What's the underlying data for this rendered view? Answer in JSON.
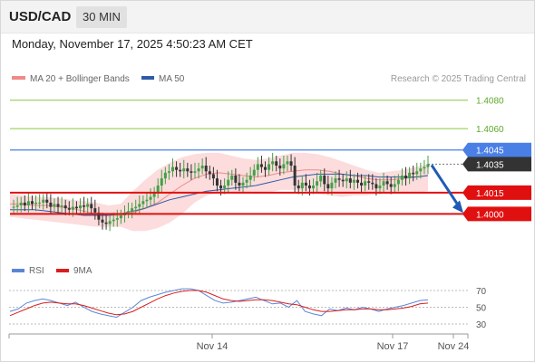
{
  "header": {
    "pair": "USD/CAD",
    "timeframe": "30 MIN",
    "timestamp": "Monday, November 17, 2025 4:50:23 AM CET"
  },
  "legend": {
    "bollinger_label": "MA 20 + Bollinger Bands",
    "ma50_label": "MA 50",
    "copyright": "Research © 2025 Trading Central",
    "bollinger_color": "#f08a8a",
    "ma50_color": "#2e5aa8"
  },
  "rsi_legend": {
    "rsi_label": "RSI",
    "ma_label": "9MA",
    "rsi_color": "#5b86d8",
    "ma_color": "#d81e1e"
  },
  "chart_data": {
    "type": "candlestick",
    "y_range": [
      1.3985,
      1.409
    ],
    "levels": [
      {
        "label": "1.4080",
        "value": 1.408,
        "kind": "target",
        "color": "#8cc63f"
      },
      {
        "label": "1.4060",
        "value": 1.406,
        "kind": "target",
        "color": "#8cc63f"
      },
      {
        "label": "1.4045",
        "value": 1.4045,
        "kind": "resistance",
        "color": "#4a7fe6"
      },
      {
        "label": "1.4035",
        "value": 1.4035,
        "kind": "last-price",
        "color": "#333333"
      },
      {
        "label": "1.4015",
        "value": 1.4015,
        "kind": "support",
        "color": "#e01010"
      },
      {
        "label": "1.4000",
        "value": 1.4,
        "kind": "support",
        "color": "#e01010"
      }
    ],
    "x_tick_labels": [
      "Nov 14",
      "Nov 17",
      "Nov 24"
    ],
    "close_path": [
      1.4005,
      1.4005,
      1.4006,
      1.4008,
      1.4006,
      1.4009,
      1.4007,
      1.4008,
      1.4008,
      1.401,
      1.4008,
      1.4005,
      1.4007,
      1.4005,
      1.4006,
      1.4004,
      1.4003,
      1.4005,
      1.4004,
      1.4006,
      1.4005,
      1.4007,
      1.4004,
      1.4001,
      1.3996,
      1.3994,
      1.3993,
      1.3995,
      1.3996,
      1.3997,
      1.3999,
      1.4001,
      1.4002,
      1.4004,
      1.4005,
      1.4007,
      1.4009,
      1.401,
      1.4012,
      1.4015,
      1.402,
      1.4025,
      1.4029,
      1.403,
      1.4033,
      1.4031,
      1.403,
      1.4032,
      1.403,
      1.4029,
      1.403,
      1.4032,
      1.4034,
      1.403,
      1.4028,
      1.4025,
      1.402,
      1.4018,
      1.402,
      1.4024,
      1.4027,
      1.4022,
      1.402,
      1.4022,
      1.4024,
      1.4027,
      1.4031,
      1.4035,
      1.4033,
      1.4031,
      1.4035,
      1.4037,
      1.4034,
      1.4032,
      1.4035,
      1.4037,
      1.4034,
      1.402,
      1.4018,
      1.4022,
      1.402,
      1.4018,
      1.402,
      1.4023,
      1.4027,
      1.4021,
      1.4018,
      1.4022,
      1.4025,
      1.4024,
      1.4023,
      1.4025,
      1.4022,
      1.4024,
      1.4022,
      1.402,
      1.4023,
      1.4022,
      1.4021,
      1.4018,
      1.402,
      1.4023,
      1.4021,
      1.4019,
      1.4021,
      1.4024,
      1.4027,
      1.4025,
      1.4029,
      1.4028,
      1.403,
      1.4032,
      1.4033,
      1.4035
    ],
    "ma20_path": [
      1.4007,
      1.4007,
      1.4006,
      1.4006,
      1.4005,
      1.4004,
      1.4002,
      1.4,
      1.3999,
      1.3999,
      1.4001,
      1.4004,
      1.4008,
      1.4014,
      1.402,
      1.4025,
      1.4028,
      1.4029,
      1.4028,
      1.4027,
      1.4026,
      1.4027,
      1.4029,
      1.403,
      1.4031,
      1.4031,
      1.403,
      1.4028,
      1.4027,
      1.4025,
      1.4024,
      1.4024,
      1.4025,
      1.4026,
      1.4027
    ],
    "ma50_path": [
      1.4003,
      1.4003,
      1.4003,
      1.4002,
      1.4001,
      1.4,
      1.3999,
      1.3999,
      1.3999,
      1.4,
      1.4002,
      1.4004,
      1.4007,
      1.401,
      1.4012,
      1.4014,
      1.4016,
      1.4017,
      1.4018,
      1.4019,
      1.402,
      1.4022,
      1.4024,
      1.4026,
      1.4027,
      1.4028,
      1.4028,
      1.4028,
      1.4027,
      1.4027,
      1.4026,
      1.4026,
      1.4026,
      1.4026,
      1.4027
    ],
    "bb_upper": [
      1.4014,
      1.4013,
      1.4012,
      1.4012,
      1.4011,
      1.401,
      1.4009,
      1.4008,
      1.4006,
      1.4007,
      1.4016,
      1.4024,
      1.4031,
      1.4036,
      1.404,
      1.4042,
      1.4043,
      1.4043,
      1.4041,
      1.4039,
      1.4038,
      1.4039,
      1.4041,
      1.4043,
      1.4043,
      1.4042,
      1.404,
      1.4037,
      1.4034,
      1.4031,
      1.4029,
      1.403,
      1.4031,
      1.4033,
      1.4035
    ],
    "bb_lower": [
      1.3998,
      1.3997,
      1.3996,
      1.3995,
      1.3994,
      1.3993,
      1.3992,
      1.3991,
      1.3991,
      1.3991,
      1.3988,
      1.3988,
      1.399,
      1.3994,
      1.4,
      1.4008,
      1.4013,
      1.4015,
      1.4015,
      1.4015,
      1.4014,
      1.4015,
      1.4017,
      1.4017,
      1.4016,
      1.4014,
      1.4013,
      1.4012,
      1.4013,
      1.4013,
      1.4014,
      1.4014,
      1.4015,
      1.4015,
      1.4016
    ],
    "forecast": {
      "from": 1.4035,
      "to": 1.4,
      "color": "#1f5bb5"
    },
    "rsi": {
      "levels": [
        70,
        50,
        30
      ],
      "rsi_path": [
        45,
        48,
        55,
        58,
        60,
        58,
        55,
        52,
        56,
        50,
        45,
        42,
        40,
        38,
        44,
        50,
        58,
        62,
        65,
        68,
        70,
        72,
        72,
        70,
        64,
        58,
        55,
        56,
        58,
        60,
        62,
        58,
        54,
        55,
        50,
        58,
        45,
        42,
        40,
        48,
        46,
        49,
        47,
        50,
        48,
        45,
        48,
        50,
        52,
        55,
        58,
        59
      ],
      "ma_path": [
        40,
        44,
        48,
        52,
        55,
        56,
        55,
        54,
        54,
        52,
        49,
        46,
        43,
        41,
        42,
        45,
        50,
        55,
        60,
        64,
        67,
        69,
        70,
        70,
        68,
        64,
        60,
        58,
        57,
        58,
        59,
        59,
        58,
        56,
        54,
        53,
        50,
        47,
        45,
        45,
        46,
        47,
        47,
        48,
        48,
        47,
        47,
        48,
        49,
        51,
        54,
        55
      ]
    }
  }
}
